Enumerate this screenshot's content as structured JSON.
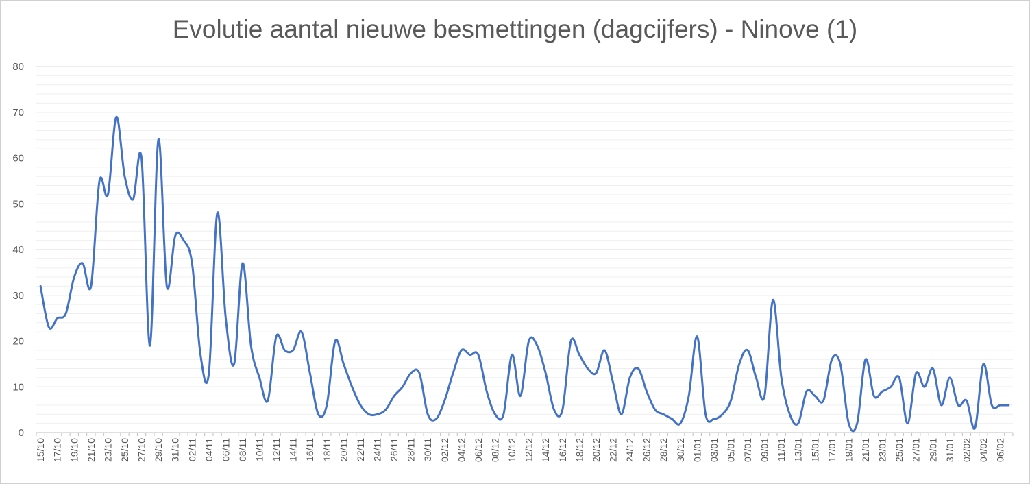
{
  "chart_data": {
    "type": "line",
    "title": "Evolutie aantal nieuwe besmettingen (dagcijfers) - Ninove (1)",
    "xlabel": "",
    "ylabel": "",
    "ylim": [
      0,
      80
    ],
    "yticks": [
      0,
      10,
      20,
      30,
      40,
      50,
      60,
      70,
      80
    ],
    "grid": true,
    "legend": "none",
    "line_color": "#4472C4",
    "x": [
      "15/10",
      "16/10",
      "17/10",
      "18/10",
      "19/10",
      "20/10",
      "21/10",
      "22/10",
      "23/10",
      "24/10",
      "25/10",
      "26/10",
      "27/10",
      "28/10",
      "29/10",
      "30/10",
      "31/10",
      "01/11",
      "02/11",
      "03/11",
      "04/11",
      "05/11",
      "06/11",
      "07/11",
      "08/11",
      "09/11",
      "10/11",
      "11/11",
      "12/11",
      "13/11",
      "14/11",
      "15/11",
      "16/11",
      "17/11",
      "18/11",
      "19/11",
      "20/11",
      "21/11",
      "22/11",
      "23/11",
      "24/11",
      "25/11",
      "26/11",
      "27/11",
      "28/11",
      "29/11",
      "30/11",
      "01/12",
      "02/12",
      "03/12",
      "04/12",
      "05/12",
      "06/12",
      "07/12",
      "08/12",
      "09/12",
      "10/12",
      "11/12",
      "12/12",
      "13/12",
      "14/12",
      "15/12",
      "16/12",
      "17/12",
      "18/12",
      "19/12",
      "20/12",
      "21/12",
      "22/12",
      "23/12",
      "24/12",
      "25/12",
      "26/12",
      "27/12",
      "28/12",
      "29/12",
      "30/12",
      "31/12",
      "01/01",
      "02/01",
      "03/01",
      "04/01",
      "05/01",
      "06/01",
      "07/01",
      "08/01",
      "09/01",
      "10/01",
      "11/01",
      "12/01",
      "13/01",
      "14/01",
      "15/01",
      "16/01",
      "17/01",
      "18/01",
      "19/01",
      "20/01",
      "21/01",
      "22/01",
      "23/01",
      "24/01",
      "25/01",
      "26/01",
      "27/01",
      "28/01",
      "29/01",
      "30/01",
      "31/01",
      "01/02",
      "02/02",
      "03/02",
      "04/02",
      "05/02",
      "06/02",
      "07/02"
    ],
    "tick_labels": [
      "15/10",
      "17/10",
      "19/10",
      "21/10",
      "23/10",
      "25/10",
      "27/10",
      "29/10",
      "31/10",
      "02/11",
      "04/11",
      "06/11",
      "08/11",
      "10/11",
      "12/11",
      "14/11",
      "16/11",
      "18/11",
      "20/11",
      "22/11",
      "24/11",
      "26/11",
      "28/11",
      "30/11",
      "02/12",
      "04/12",
      "06/12",
      "08/12",
      "10/12",
      "12/12",
      "14/12",
      "16/12",
      "18/12",
      "20/12",
      "22/12",
      "24/12",
      "26/12",
      "28/12",
      "30/12",
      "01/01",
      "03/01",
      "05/01",
      "07/01",
      "09/01",
      "11/01",
      "13/01",
      "15/01",
      "17/01",
      "19/01",
      "21/01",
      "23/01",
      "25/01",
      "27/01",
      "29/01",
      "31/01",
      "02/02",
      "04/02",
      "06/02"
    ],
    "series": [
      {
        "values": [
          32,
          23,
          25,
          26,
          34,
          37,
          32,
          55,
          52,
          69,
          56,
          51,
          60,
          19,
          64,
          32,
          43,
          42,
          37,
          17,
          13,
          48,
          25,
          15,
          37,
          19,
          12,
          7,
          21,
          18,
          18,
          22,
          13,
          4,
          6,
          20,
          15,
          10,
          6,
          4,
          4,
          5,
          8,
          10,
          13,
          13,
          4,
          3,
          7,
          13,
          18,
          17,
          17,
          9,
          4,
          4,
          17,
          8,
          20,
          19,
          13,
          5,
          5,
          20,
          17,
          14,
          13,
          18,
          11,
          4,
          12,
          14,
          9,
          5,
          4,
          3,
          2,
          8,
          21,
          4,
          3,
          4,
          7,
          15,
          18,
          12,
          8,
          29,
          12,
          4,
          2,
          9,
          8,
          7,
          16,
          15,
          2,
          2,
          16,
          8,
          9,
          10,
          12,
          2,
          13,
          10,
          14,
          6,
          12,
          6,
          7,
          1,
          15,
          6,
          6,
          6
        ]
      }
    ]
  }
}
